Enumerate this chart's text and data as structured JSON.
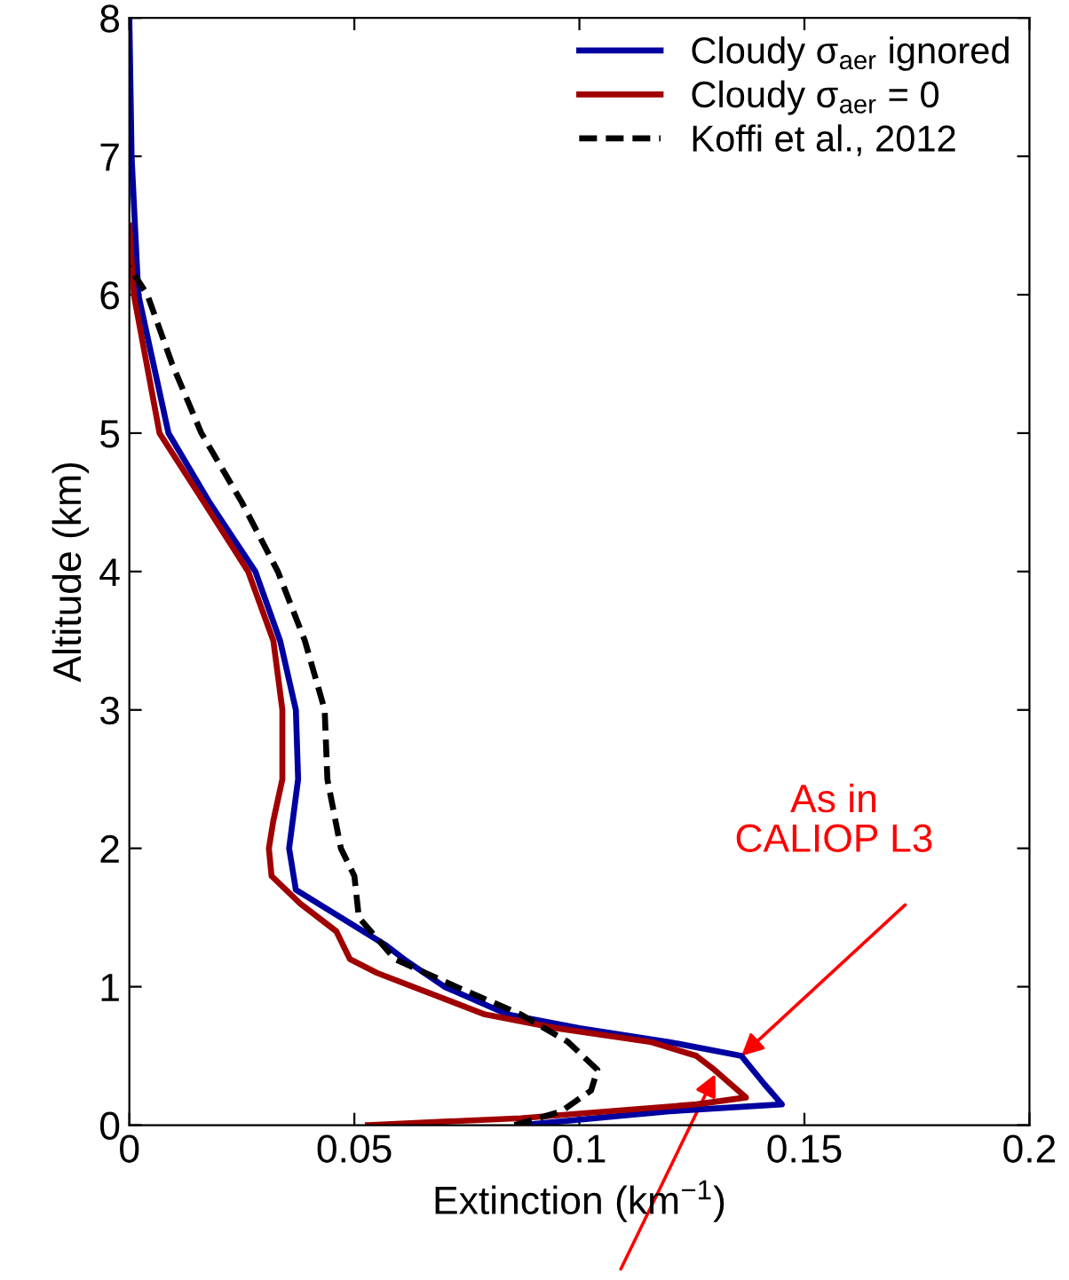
{
  "chart_data": {
    "type": "line",
    "xlabel": "Extinction (km$^{−1}$)",
    "ylabel": "Altitude (km)",
    "xlim": [
      0,
      0.2
    ],
    "xticks": [
      0,
      0.05,
      0.1,
      0.15,
      0.2
    ],
    "ylim": [
      0,
      8
    ],
    "yticks": [
      0,
      1,
      2,
      3,
      4,
      5,
      6,
      7,
      8
    ],
    "grid": false,
    "legend": "top right",
    "series": [
      {
        "name": "Cloudy σ$_{aer}$ ignored",
        "color": "#0000a0",
        "line_style": "solid",
        "x": [
          0.087,
          0.12,
          0.145,
          0.141,
          0.136,
          0.12,
          0.1,
          0.084,
          0.07,
          0.061,
          0.057,
          0.047,
          0.037,
          0.0355,
          0.0375,
          0.037,
          0.0335,
          0.028,
          0.0178,
          0.0087,
          0.002,
          0.0005,
          0.0
        ],
        "values": [
          0,
          0.1,
          0.15,
          0.3,
          0.5,
          0.6,
          0.7,
          0.8,
          1.0,
          1.2,
          1.3,
          1.5,
          1.7,
          2,
          2.5,
          3,
          3.5,
          4,
          4.5,
          5,
          6,
          7,
          8
        ]
      },
      {
        "name": "Cloudy σ$_{aer}$ = 0",
        "color": "#a00000",
        "line_style": "solid",
        "x": [
          0.053,
          0.087,
          0.126,
          0.137,
          0.13,
          0.126,
          0.116,
          0.095,
          0.079,
          0.063,
          0.055,
          0.049,
          0.046,
          0.038,
          0.0316,
          0.031,
          0.032,
          0.034,
          0.034,
          0.032,
          0.0264,
          0.0166,
          0.0067,
          0.001,
          0.0
        ],
        "values": [
          0,
          0.05,
          0.15,
          0.2,
          0.4,
          0.5,
          0.6,
          0.7,
          0.8,
          1.0,
          1.1,
          1.2,
          1.4,
          1.6,
          1.8,
          2.0,
          2.2,
          2.5,
          3,
          3.5,
          4,
          4.5,
          5,
          6,
          6.5
        ]
      },
      {
        "name": "Koffi et al., 2012",
        "color": "#000000",
        "line_style": "dashed",
        "x": [
          0.0856,
          0.096,
          0.1026,
          0.104,
          0.0975,
          0.087,
          0.0726,
          0.059,
          0.051,
          0.05,
          0.047,
          0.044,
          0.0434,
          0.039,
          0.033,
          0.025,
          0.016,
          0.0095,
          0.004,
          0.0
        ],
        "values": [
          0,
          0.1,
          0.25,
          0.4,
          0.6,
          0.8,
          1.0,
          1.2,
          1.5,
          1.8,
          2,
          2.5,
          3,
          3.5,
          4,
          4.5,
          5,
          5.5,
          6,
          6.2
        ]
      }
    ],
    "annotations": [
      "As in\nCALIOP L3"
    ]
  }
}
